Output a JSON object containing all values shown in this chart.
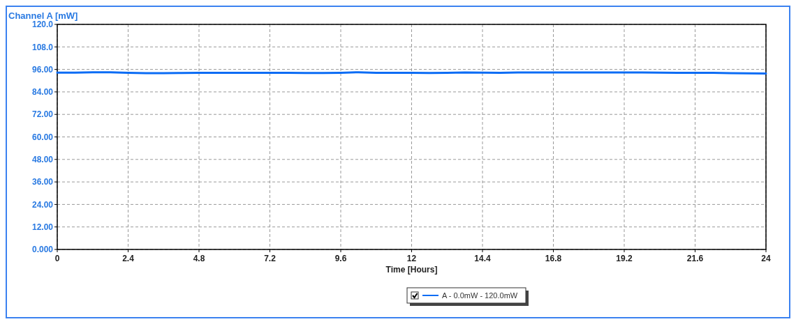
{
  "chart_data": {
    "type": "line",
    "ylabel": "Channel A [mW]",
    "xlabel": "Time [Hours]",
    "x": [
      0,
      0.6,
      1.2,
      1.8,
      2.4,
      3,
      3.6,
      4.2,
      4.8,
      5.4,
      6,
      6.6,
      7.2,
      7.8,
      8.4,
      9,
      9.6,
      10.2,
      10.8,
      11.4,
      12,
      12.6,
      13.2,
      13.8,
      14.4,
      15,
      15.6,
      16.2,
      16.8,
      17.4,
      18,
      18.6,
      19.2,
      19.8,
      20.4,
      21,
      21.6,
      22.2,
      22.8,
      23.4,
      24
    ],
    "series": [
      {
        "name": "A - 0.0mW - 120.0mW",
        "color": "#0b6cf5",
        "values": [
          94.3,
          94.3,
          94.5,
          94.5,
          94.2,
          94.0,
          94.0,
          94.1,
          94.2,
          94.2,
          94.2,
          94.2,
          94.2,
          94.2,
          94.1,
          94.1,
          94.2,
          94.5,
          94.2,
          94.2,
          94.2,
          94.1,
          94.2,
          94.4,
          94.3,
          94.2,
          94.4,
          94.4,
          94.4,
          94.4,
          94.4,
          94.4,
          94.4,
          94.4,
          94.3,
          94.2,
          94.2,
          94.2,
          94.0,
          93.9,
          93.8
        ]
      }
    ],
    "xlim": [
      0,
      24
    ],
    "xticks": [
      0,
      2.4,
      4.8,
      7.2,
      9.6,
      12,
      14.4,
      16.8,
      19.2,
      21.6,
      24
    ],
    "ylim": [
      0,
      120
    ],
    "yticks": [
      {
        "value": 0,
        "label": "0.000"
      },
      {
        "value": 12,
        "label": "12.00"
      },
      {
        "value": 24,
        "label": "24.00"
      },
      {
        "value": 36,
        "label": "36.00"
      },
      {
        "value": 48,
        "label": "48.00"
      },
      {
        "value": 60,
        "label": "60.00"
      },
      {
        "value": 72,
        "label": "72.00"
      },
      {
        "value": 84,
        "label": "84.00"
      },
      {
        "value": 96,
        "label": "96.00"
      },
      {
        "value": 108,
        "label": "108.0"
      },
      {
        "value": 120,
        "label": "120.0"
      }
    ],
    "grid": true,
    "legend": "bottom",
    "line_style": "solid",
    "marker": "none"
  }
}
